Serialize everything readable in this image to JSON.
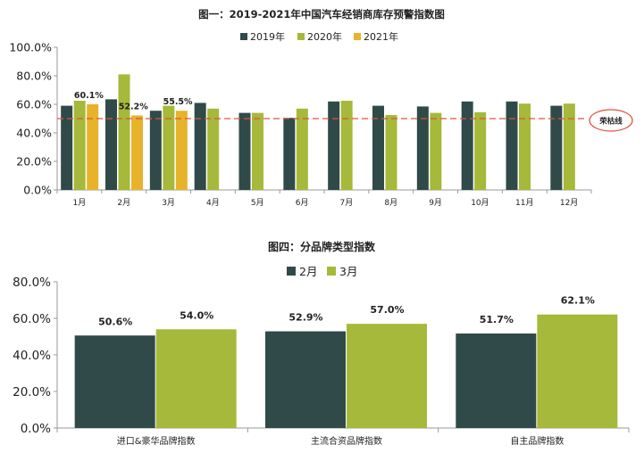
{
  "chart_data": [
    {
      "type": "bar",
      "title": "图一：2019-2021年中国汽车经销商库存预警指数图",
      "categories": [
        "1月",
        "2月",
        "3月",
        "4月",
        "5月",
        "6月",
        "7月",
        "8月",
        "9月",
        "10月",
        "11月",
        "12月"
      ],
      "series": [
        {
          "name": "2019年",
          "color": "#2f4a48",
          "values": [
            59,
            63.5,
            55.5,
            61,
            54,
            50.5,
            62,
            59,
            58.5,
            62,
            62,
            59
          ]
        },
        {
          "name": "2020年",
          "color": "#a6b93a",
          "values": [
            62.5,
            81,
            59,
            57,
            54,
            57,
            62.5,
            52.5,
            54,
            54.5,
            60.5,
            60.5
          ]
        },
        {
          "name": "2021年",
          "color": "#e7b32b",
          "values": [
            60.1,
            52.2,
            55.5,
            null,
            null,
            null,
            null,
            null,
            null,
            null,
            null,
            null
          ]
        }
      ],
      "data_labels": [
        {
          "category": "1月",
          "series": "2021年",
          "text": "60.1%"
        },
        {
          "category": "2月",
          "series": "2021年",
          "text": "52.2%"
        },
        {
          "category": "3月",
          "series": "2021年",
          "text": "55.5%"
        }
      ],
      "yticks": [
        "0.0%",
        "20.0%",
        "40.0%",
        "60.0%",
        "80.0%",
        "100.0%"
      ],
      "ylim": [
        0,
        100
      ],
      "reference_line": {
        "value": 50,
        "label": "荣枯线",
        "color": "#e5503a"
      },
      "legend": "top"
    },
    {
      "type": "bar",
      "title": "图四：分品牌类型指数",
      "categories": [
        "进口&豪华品牌指数",
        "主流合资品牌指数",
        "自主品牌指数"
      ],
      "series": [
        {
          "name": "2月",
          "color": "#2f4a48",
          "values": [
            50.6,
            52.9,
            51.7
          ],
          "labels": [
            "50.6%",
            "52.9%",
            "51.7%"
          ]
        },
        {
          "name": "3月",
          "color": "#a6b93a",
          "values": [
            54.0,
            57.0,
            62.1
          ],
          "labels": [
            "54.0%",
            "57.0%",
            "62.1%"
          ]
        }
      ],
      "yticks": [
        "0.0%",
        "20.0%",
        "40.0%",
        "60.0%",
        "80.0%"
      ],
      "ylim": [
        0,
        80
      ],
      "legend": "top"
    }
  ]
}
